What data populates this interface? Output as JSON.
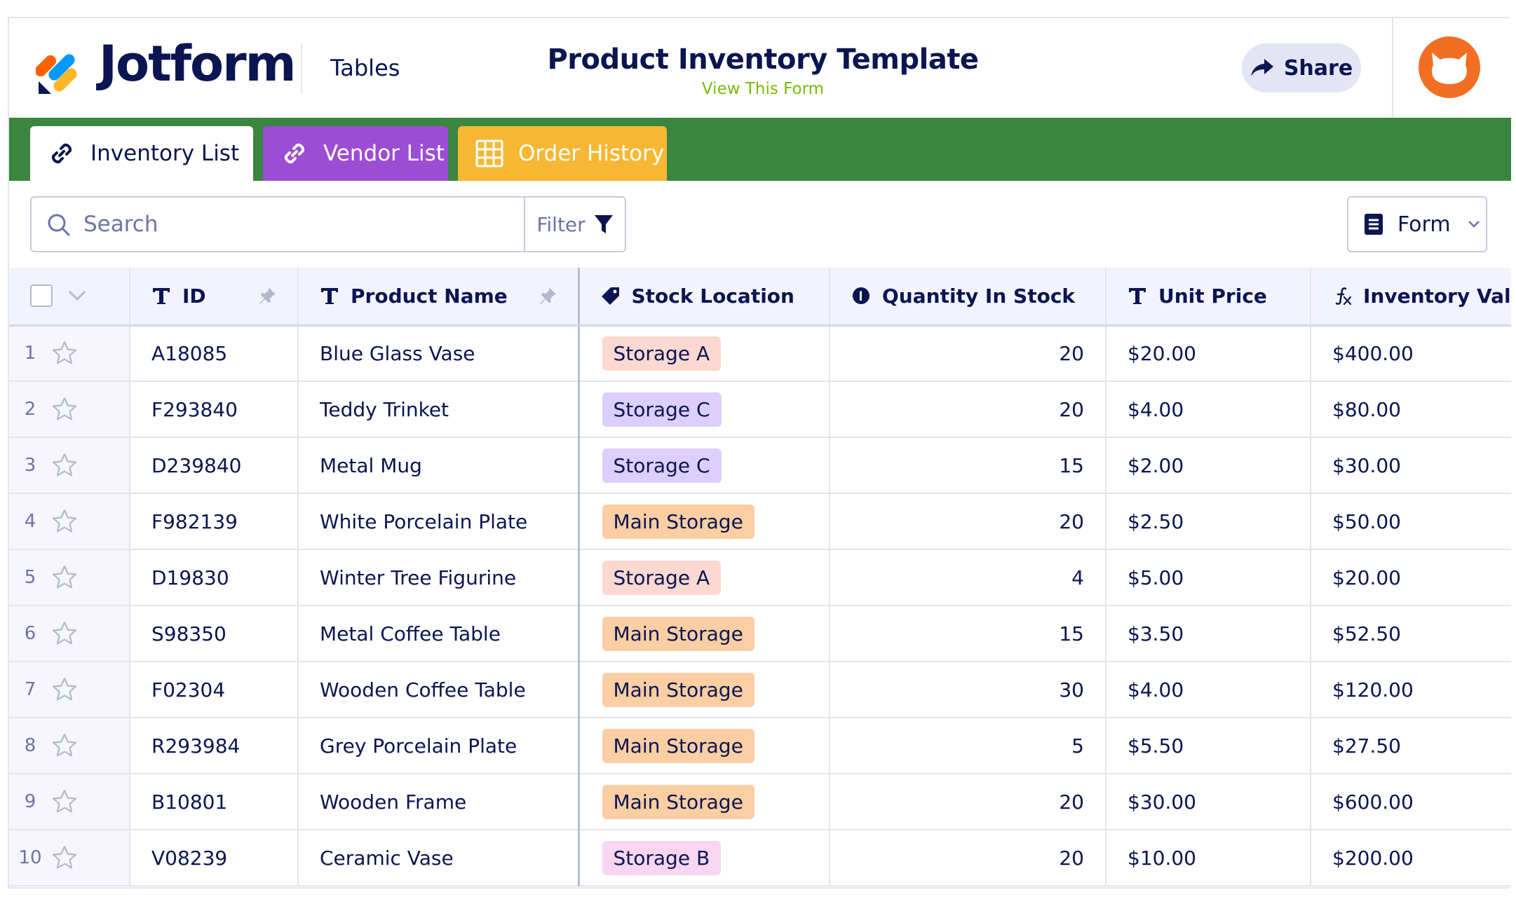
{
  "header": {
    "brand": "Jotform",
    "tables_link": "Tables",
    "title": "Product Inventory Template",
    "subtitle": "View This Form",
    "share_label": "Share"
  },
  "tabs": [
    {
      "label": "Inventory List",
      "icon": "link-icon",
      "color": "#ffffff",
      "active": true
    },
    {
      "label": "Vendor List",
      "icon": "link-icon",
      "color": "#9c4dd3",
      "active": false
    },
    {
      "label": "Order History",
      "icon": "grid-icon",
      "color": "#f7b733",
      "active": false
    }
  ],
  "toolbar": {
    "search_placeholder": "Search",
    "filter_label": "Filter",
    "form_label": "Form"
  },
  "columns": [
    {
      "label": "ID",
      "icon": "text-type-icon"
    },
    {
      "label": "Product Name",
      "icon": "text-type-icon"
    },
    {
      "label": "Stock Location",
      "icon": "tag-icon"
    },
    {
      "label": "Quantity In Stock",
      "icon": "number-type-icon"
    },
    {
      "label": "Unit Price",
      "icon": "text-type-icon"
    },
    {
      "label": "Inventory Value",
      "icon": "formula-icon"
    }
  ],
  "location_colors": {
    "Storage A": "#fbd8d0",
    "Storage B": "#f9d6ef",
    "Storage C": "#dccffb",
    "Main Storage": "#fbcea3"
  },
  "rows": [
    {
      "num": "1",
      "id": "A18085",
      "name": "Blue Glass Vase",
      "location": "Storage A",
      "qty": "20",
      "price": "$20.00",
      "value": "$400.00"
    },
    {
      "num": "2",
      "id": "F293840",
      "name": "Teddy Trinket",
      "location": "Storage C",
      "qty": "20",
      "price": "$4.00",
      "value": "$80.00"
    },
    {
      "num": "3",
      "id": "D239840",
      "name": "Metal Mug",
      "location": "Storage C",
      "qty": "15",
      "price": "$2.00",
      "value": "$30.00"
    },
    {
      "num": "4",
      "id": "F982139",
      "name": "White Porcelain Plate",
      "location": "Main Storage",
      "qty": "20",
      "price": "$2.50",
      "value": "$50.00"
    },
    {
      "num": "5",
      "id": "D19830",
      "name": "Winter Tree Figurine",
      "location": "Storage A",
      "qty": "4",
      "price": "$5.00",
      "value": "$20.00"
    },
    {
      "num": "6",
      "id": "S98350",
      "name": "Metal Coffee Table",
      "location": "Main Storage",
      "qty": "15",
      "price": "$3.50",
      "value": "$52.50"
    },
    {
      "num": "7",
      "id": "F02304",
      "name": "Wooden Coffee Table",
      "location": "Main Storage",
      "qty": "30",
      "price": "$4.00",
      "value": "$120.00"
    },
    {
      "num": "8",
      "id": "R293984",
      "name": "Grey Porcelain Plate",
      "location": "Main Storage",
      "qty": "5",
      "price": "$5.50",
      "value": "$27.50"
    },
    {
      "num": "9",
      "id": "B10801",
      "name": "Wooden Frame",
      "location": "Main Storage",
      "qty": "20",
      "price": "$30.00",
      "value": "$600.00"
    },
    {
      "num": "10",
      "id": "V08239",
      "name": "Ceramic Vase",
      "location": "Storage B",
      "qty": "20",
      "price": "$10.00",
      "value": "$200.00"
    }
  ]
}
